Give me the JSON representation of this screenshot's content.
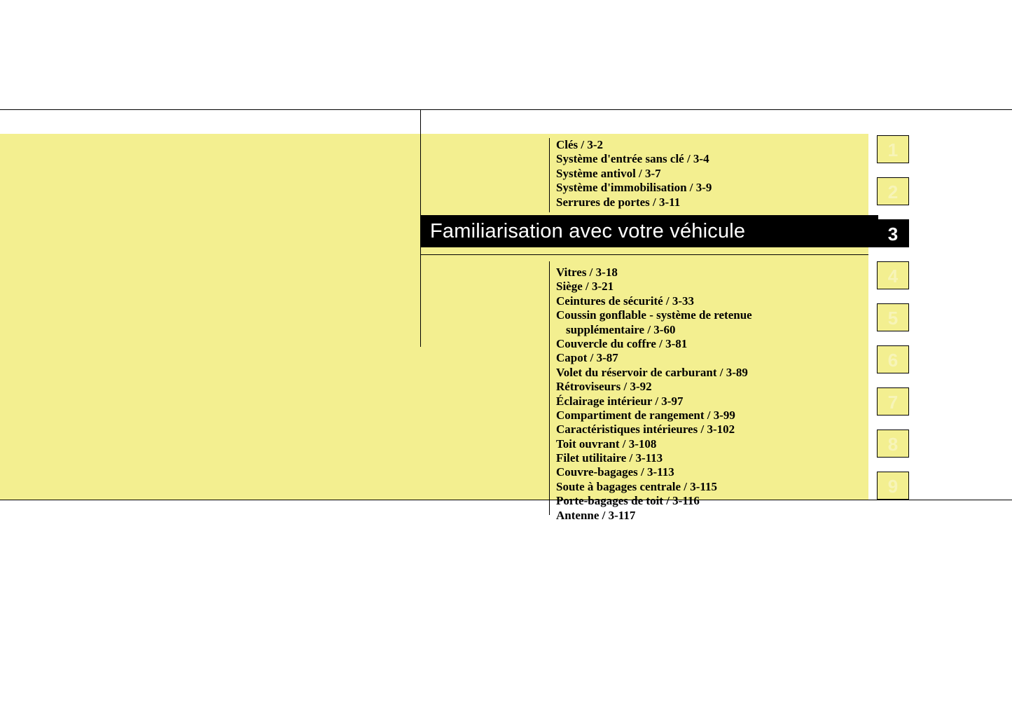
{
  "title": "Familiarisation avec votre véhicule",
  "active_tab": 3,
  "tabs": {
    "t1": "1",
    "t2": "2",
    "t3": "3",
    "t4": "4",
    "t5": "5",
    "t6": "6",
    "t7": "7",
    "t8": "8",
    "t9": "9"
  },
  "colors": {
    "page_bg": "#ffffff",
    "yellow": "#f3ef90",
    "title_bg": "#000000",
    "title_fg": "#ffffff",
    "rule": "#000000",
    "tab_ghost_text": "#f7f4b8"
  },
  "typography": {
    "entry_family": "Times New Roman",
    "entry_weight": "bold",
    "entry_size_pt": 13,
    "title_family": "Arial",
    "title_size_pt": 22,
    "tab_family": "Arial",
    "tab_size_pt": 20
  },
  "top_entries": [
    "Clés / 3-2",
    "Système d'entrée sans clé / 3-4",
    "Système antivol / 3-7",
    "Système d'immobilisation / 3-9",
    "Serrures de portes / 3-11"
  ],
  "bottom_entries": [
    "Vitres / 3-18",
    "Siège / 3-21",
    "Ceintures de sécurité / 3-33",
    "Coussin gonflable - système de retenue",
    "  supplémentaire / 3-60",
    "Couvercle du coffre / 3-81",
    "Capot / 3-87",
    "Volet du réservoir de carburant / 3-89",
    "Rétroviseurs / 3-92",
    "Éclairage intérieur / 3-97",
    "Compartiment de rangement / 3-99",
    "Caractéristiques intérieures / 3-102",
    "Toit ouvrant / 3-108",
    "Filet utilitaire / 3-113",
    "Couvre-bagages / 3-113",
    "Soute à bagages centrale / 3-115",
    "Porte-bagages de toit / 3-116",
    "Antenne / 3-117"
  ]
}
